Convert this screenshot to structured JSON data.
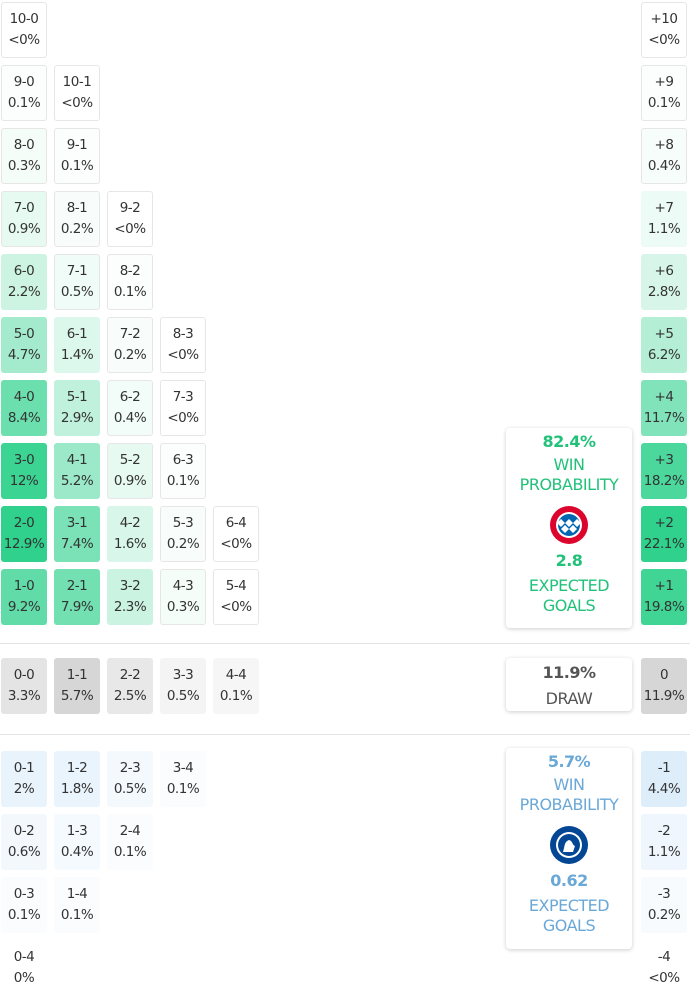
{
  "home_wins": [
    [
      [
        "10-0",
        "<0%"
      ]
    ],
    [
      [
        "9-0",
        "0.1%"
      ],
      [
        "10-1",
        "<0%"
      ]
    ],
    [
      [
        "8-0",
        "0.3%"
      ],
      [
        "9-1",
        "0.1%"
      ]
    ],
    [
      [
        "7-0",
        "0.9%"
      ],
      [
        "8-1",
        "0.2%"
      ],
      [
        "9-2",
        "<0%"
      ]
    ],
    [
      [
        "6-0",
        "2.2%"
      ],
      [
        "7-1",
        "0.5%"
      ],
      [
        "8-2",
        "0.1%"
      ]
    ],
    [
      [
        "5-0",
        "4.7%"
      ],
      [
        "6-1",
        "1.4%"
      ],
      [
        "7-2",
        "0.2%"
      ],
      [
        "8-3",
        "<0%"
      ]
    ],
    [
      [
        "4-0",
        "8.4%"
      ],
      [
        "5-1",
        "2.9%"
      ],
      [
        "6-2",
        "0.4%"
      ],
      [
        "7-3",
        "<0%"
      ]
    ],
    [
      [
        "3-0",
        "12%"
      ],
      [
        "4-1",
        "5.2%"
      ],
      [
        "5-2",
        "0.9%"
      ],
      [
        "6-3",
        "0.1%"
      ]
    ],
    [
      [
        "2-0",
        "12.9%"
      ],
      [
        "3-1",
        "7.4%"
      ],
      [
        "4-2",
        "1.6%"
      ],
      [
        "5-3",
        "0.2%"
      ],
      [
        "6-4",
        "<0%"
      ]
    ],
    [
      [
        "1-0",
        "9.2%"
      ],
      [
        "2-1",
        "7.9%"
      ],
      [
        "3-2",
        "2.3%"
      ],
      [
        "4-3",
        "0.3%"
      ],
      [
        "5-4",
        "<0%"
      ]
    ]
  ],
  "draws": [
    [
      "0-0",
      "3.3%"
    ],
    [
      "1-1",
      "5.7%"
    ],
    [
      "2-2",
      "2.5%"
    ],
    [
      "3-3",
      "0.5%"
    ],
    [
      "4-4",
      "0.1%"
    ]
  ],
  "away_wins": [
    [
      [
        "0-1",
        "2%"
      ],
      [
        "1-2",
        "1.8%"
      ],
      [
        "2-3",
        "0.5%"
      ],
      [
        "3-4",
        "0.1%"
      ]
    ],
    [
      [
        "0-2",
        "0.6%"
      ],
      [
        "1-3",
        "0.4%"
      ],
      [
        "2-4",
        "0.1%"
      ]
    ],
    [
      [
        "0-3",
        "0.1%"
      ],
      [
        "1-4",
        "0.1%"
      ]
    ],
    [
      [
        "0-4",
        "0%"
      ]
    ]
  ],
  "margins_home": [
    [
      "+10",
      "<0%"
    ],
    [
      "+9",
      "0.1%"
    ],
    [
      "+8",
      "0.4%"
    ],
    [
      "+7",
      "1.1%"
    ],
    [
      "+6",
      "2.8%"
    ],
    [
      "+5",
      "6.2%"
    ],
    [
      "+4",
      "11.7%"
    ],
    [
      "+3",
      "18.2%"
    ],
    [
      "+2",
      "22.1%"
    ],
    [
      "+1",
      "19.8%"
    ]
  ],
  "margin_draw": [
    "0",
    "11.9%"
  ],
  "margins_away": [
    [
      "-1",
      "4.4%"
    ],
    [
      "-2",
      "1.1%"
    ],
    [
      "-3",
      "0.2%"
    ],
    [
      "-4",
      "<0%"
    ]
  ],
  "home": {
    "win_pct": "82.4%",
    "win_label1": "WIN",
    "win_label2": "PROBABILITY",
    "xg": "2.8",
    "xg_label1": "EXPECTED",
    "xg_label2": "GOALS",
    "color": "#21c17a"
  },
  "draw": {
    "pct": "11.9%",
    "label": "DRAW"
  },
  "away": {
    "win_pct": "5.7%",
    "win_label1": "WIN",
    "win_label2": "PROBABILITY",
    "xg": "0.62",
    "xg_label1": "EXPECTED",
    "xg_label2": "GOALS",
    "color": "#6aa8d8"
  }
}
